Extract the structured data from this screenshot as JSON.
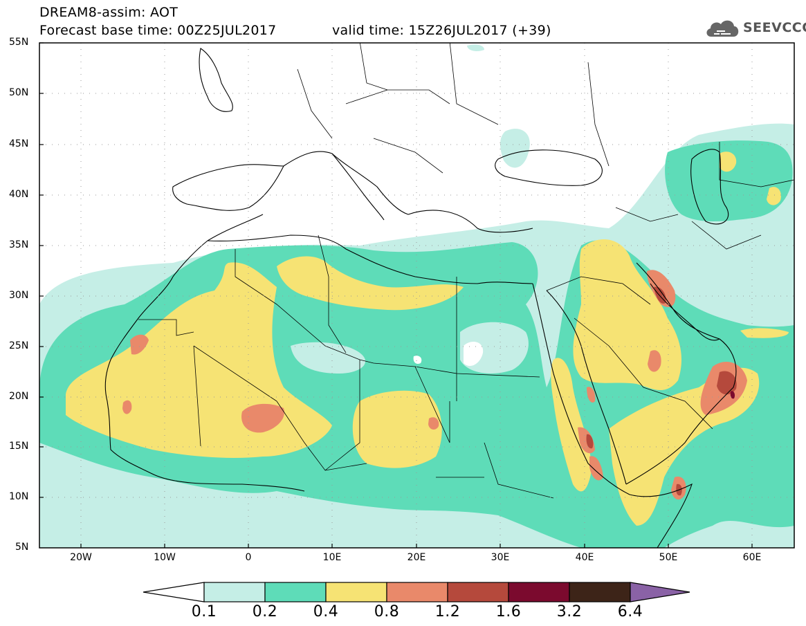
{
  "header": {
    "title_line1": "DREAM8-assim: AOT",
    "title_line2": "Forecast base time: 00Z25JUL2017",
    "valid_time": "valid time: 15Z26JUL2017 (+39)"
  },
  "logo": {
    "text": "SEEVCCC",
    "icon": "cloud-icon"
  },
  "map": {
    "projection": "cylindrical",
    "lon_range": [
      -25,
      65
    ],
    "lat_range": [
      5,
      55
    ],
    "lat_ticks": [
      "55N",
      "50N",
      "45N",
      "40N",
      "35N",
      "30N",
      "25N",
      "20N",
      "15N",
      "10N",
      "5N"
    ],
    "lon_ticks": [
      "20W",
      "10W",
      "0",
      "10E",
      "20E",
      "30E",
      "40E",
      "50E",
      "60E"
    ],
    "gridlines": "dotted"
  },
  "legend": {
    "levels": [
      "0.1",
      "0.2",
      "0.4",
      "0.8",
      "1.2",
      "1.6",
      "3.2",
      "6.4"
    ],
    "colors": {
      "lt_0.1": "#ffffff",
      "0.1-0.2": "#c5eee6",
      "0.2-0.4": "#5edcb8",
      "0.4-0.8": "#f6e374",
      "0.8-1.2": "#e9896a",
      "1.2-1.6": "#b5493c",
      "1.6-3.2": "#7b0a2e",
      "3.2-6.4": "#3d2418",
      "gt_6.4": "#8a62a6"
    }
  }
}
